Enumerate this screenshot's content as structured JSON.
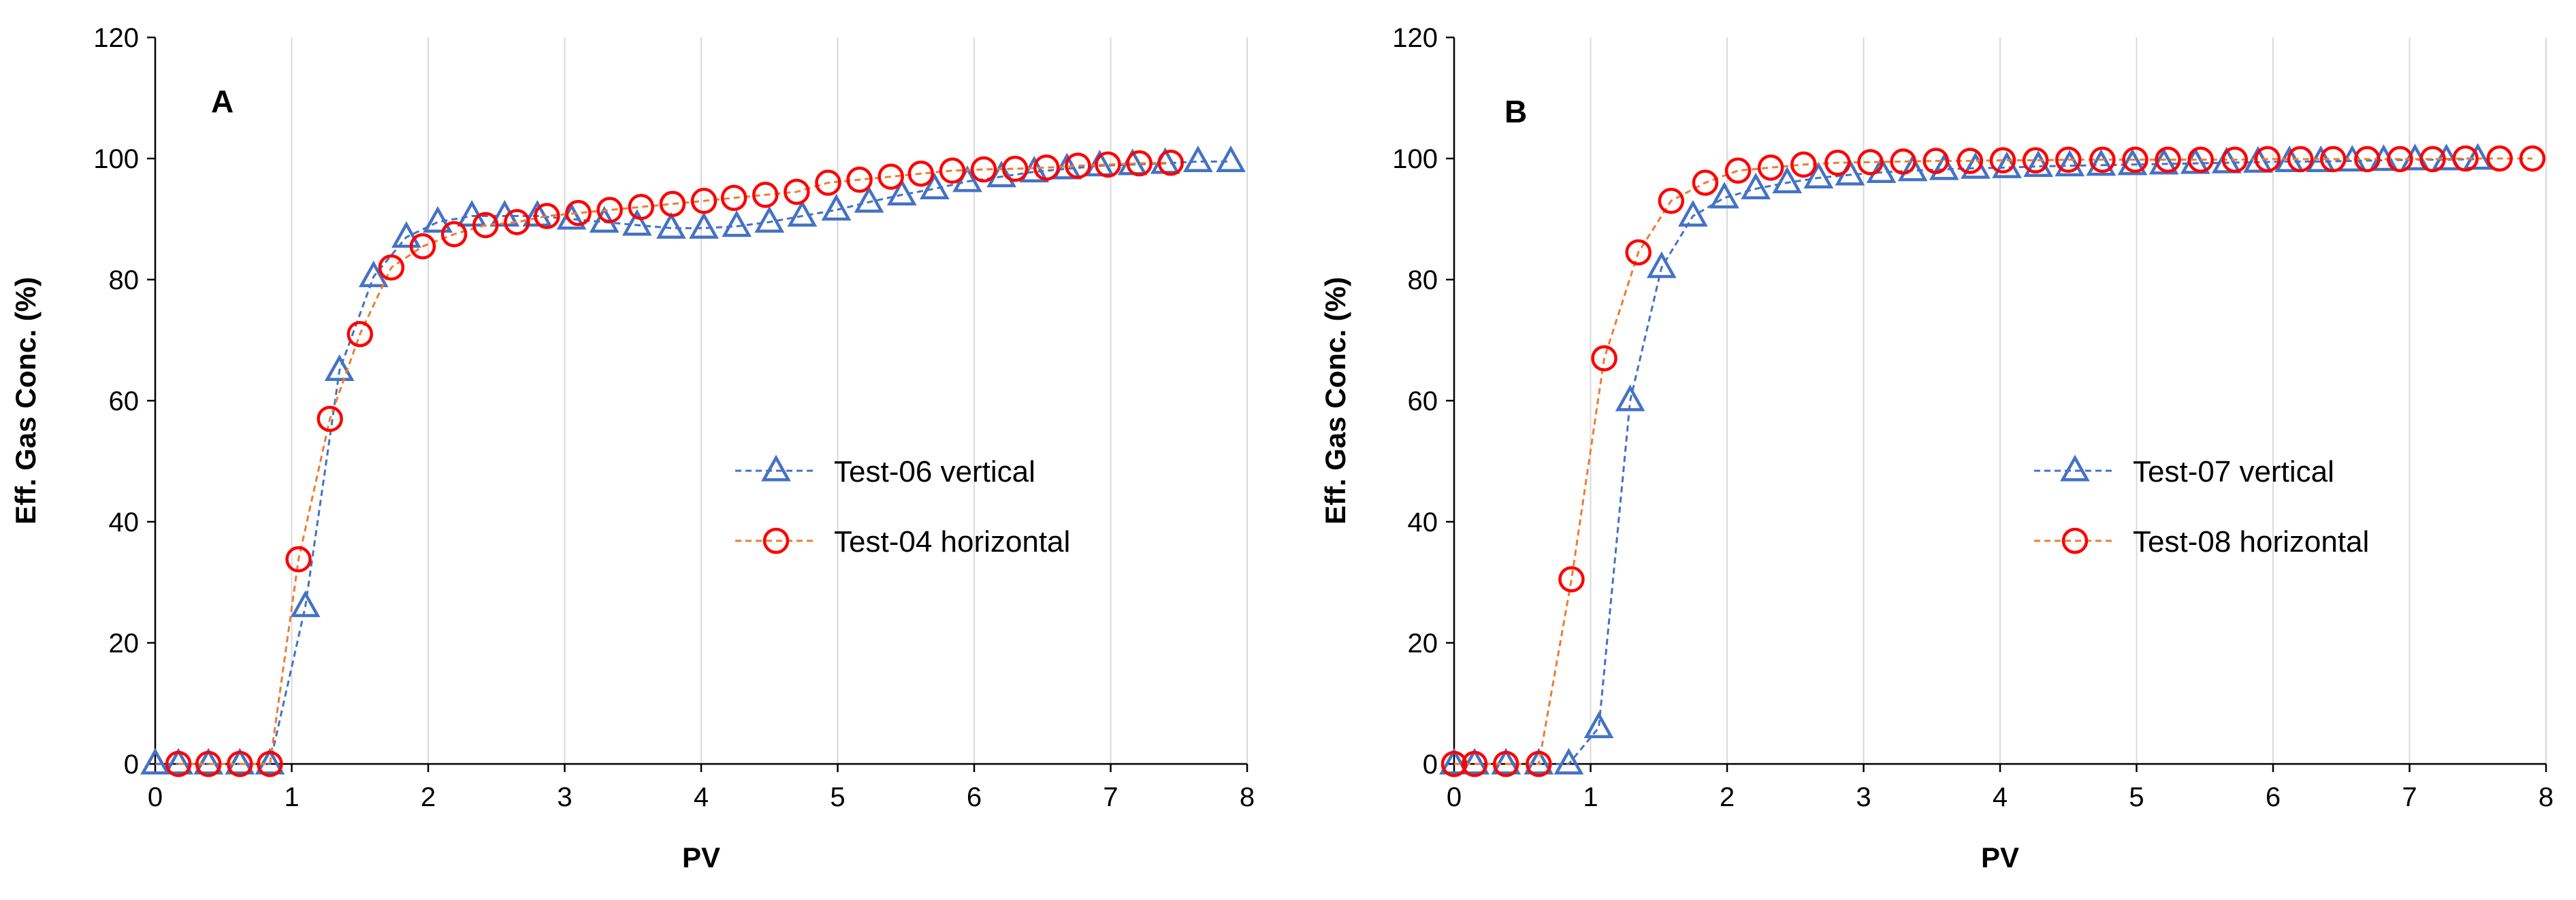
{
  "chart_data": [
    {
      "type": "line",
      "panel_label": "A",
      "xlabel": "PV",
      "ylabel": "Eff. Gas Conc. (%)",
      "xlim": [
        0,
        8
      ],
      "ylim": [
        0,
        120
      ],
      "xticks": [
        "0",
        "1",
        "2",
        "3",
        "4",
        "5",
        "6",
        "7",
        "8"
      ],
      "yticks": [
        "0",
        "20",
        "40",
        "60",
        "80",
        "100",
        "120"
      ],
      "grid": "vertical",
      "legend_position": "center-right",
      "series": [
        {
          "name": "Test-06 vertical",
          "marker": "triangle",
          "color": "#4472C4",
          "x": [
            0,
            0.17,
            0.39,
            0.62,
            0.84,
            1.1,
            1.35,
            1.6,
            1.84,
            2.07,
            2.32,
            2.56,
            2.8,
            3.05,
            3.29,
            3.53,
            3.78,
            4.02,
            4.26,
            4.5,
            4.74,
            4.99,
            5.23,
            5.47,
            5.71,
            5.95,
            6.2,
            6.44,
            6.68,
            6.92,
            7.16,
            7.4,
            7.64,
            7.88
          ],
          "y": [
            0,
            0,
            0,
            0,
            0,
            26,
            65,
            80.5,
            87,
            89.5,
            90.5,
            90.5,
            90.5,
            90,
            89.5,
            89,
            88.5,
            88.5,
            88.8,
            89.5,
            90.5,
            91.5,
            92.8,
            94,
            95,
            96.2,
            97,
            97.8,
            98.3,
            98.8,
            99,
            99.2,
            99.5,
            99.5
          ]
        },
        {
          "name": "Test-04 horizontal",
          "marker": "circle",
          "color": "#FF0000",
          "line_color": "#ED7D31",
          "x": [
            0.17,
            0.39,
            0.62,
            0.84,
            1.05,
            1.28,
            1.5,
            1.73,
            1.96,
            2.19,
            2.42,
            2.65,
            2.87,
            3.1,
            3.33,
            3.56,
            3.79,
            4.02,
            4.24,
            4.47,
            4.7,
            4.93,
            5.16,
            5.39,
            5.61,
            5.84,
            6.07,
            6.3,
            6.53,
            6.76,
            6.98,
            7.21,
            7.44
          ],
          "y": [
            0,
            0,
            0,
            0,
            33.8,
            57,
            71,
            82,
            85.5,
            87.5,
            89,
            89.5,
            90.5,
            91,
            91.5,
            92,
            92.5,
            93,
            93.5,
            94,
            94.5,
            96,
            96.5,
            97,
            97.5,
            98,
            98.2,
            98.3,
            98.5,
            98.8,
            99,
            99.2,
            99.3
          ]
        }
      ]
    },
    {
      "type": "line",
      "panel_label": "B",
      "xlabel": "PV",
      "ylabel": "Eff. Gas Conc. (%)",
      "xlim": [
        0,
        8
      ],
      "ylim": [
        0,
        120
      ],
      "xticks": [
        "0",
        "1",
        "2",
        "3",
        "4",
        "5",
        "6",
        "7",
        "8"
      ],
      "yticks": [
        "0",
        "20",
        "40",
        "60",
        "80",
        "100",
        "120"
      ],
      "grid": "vertical",
      "legend_position": "center-right",
      "series": [
        {
          "name": "Test-07 vertical",
          "marker": "triangle",
          "color": "#4472C4",
          "x": [
            0,
            0.15,
            0.38,
            0.62,
            0.84,
            1.06,
            1.29,
            1.52,
            1.75,
            1.98,
            2.21,
            2.44,
            2.67,
            2.9,
            3.13,
            3.36,
            3.59,
            3.82,
            4.05,
            4.28,
            4.51,
            4.74,
            4.97,
            5.2,
            5.43,
            5.66,
            5.89,
            6.12,
            6.35,
            6.58,
            6.81,
            7.04,
            7.27,
            7.5
          ],
          "y": [
            0,
            0,
            0,
            0,
            0,
            6,
            60,
            82,
            90.5,
            93.5,
            95,
            96,
            96.8,
            97.3,
            97.7,
            98,
            98.2,
            98.4,
            98.5,
            98.7,
            98.8,
            98.9,
            99,
            99.1,
            99.2,
            99.3,
            99.4,
            99.5,
            99.5,
            99.6,
            99.7,
            99.8,
            99.8,
            99.9
          ]
        },
        {
          "name": "Test-08 horizontal",
          "marker": "circle",
          "color": "#FF0000",
          "line_color": "#ED7D31",
          "x": [
            0,
            0.15,
            0.38,
            0.62,
            0.86,
            1.1,
            1.35,
            1.59,
            1.84,
            2.08,
            2.32,
            2.56,
            2.81,
            3.05,
            3.29,
            3.53,
            3.78,
            4.02,
            4.26,
            4.5,
            4.75,
            4.99,
            5.23,
            5.47,
            5.72,
            5.96,
            6.2,
            6.44,
            6.69,
            6.93,
            7.17,
            7.41,
            7.66,
            7.9
          ],
          "y": [
            0,
            0,
            0,
            0,
            30.5,
            67,
            84.5,
            93,
            96,
            98,
            98.5,
            99,
            99.3,
            99.4,
            99.5,
            99.6,
            99.6,
            99.7,
            99.7,
            99.8,
            99.8,
            99.8,
            99.8,
            99.8,
            99.8,
            99.9,
            99.9,
            99.9,
            99.9,
            99.9,
            99.9,
            100,
            100,
            100
          ]
        }
      ]
    }
  ]
}
